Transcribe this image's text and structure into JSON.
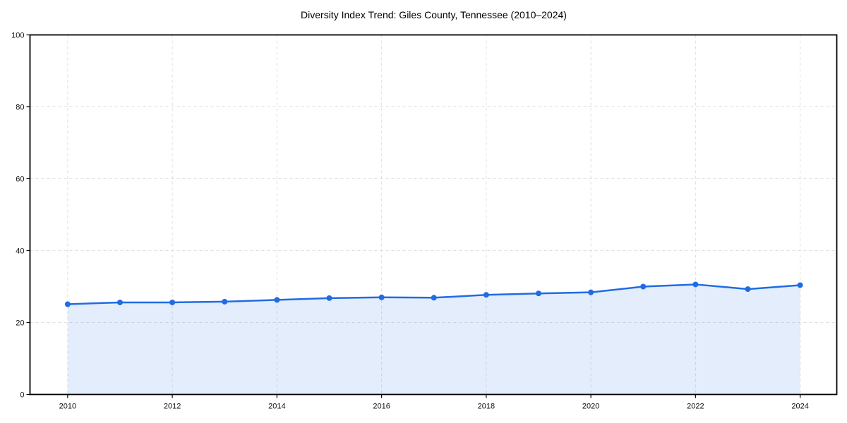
{
  "chart_data": {
    "type": "line",
    "area_fill": true,
    "title": "Diversity Index Trend: Giles County, Tennessee (2010–2024)",
    "x": [
      2010,
      2011,
      2012,
      2013,
      2014,
      2015,
      2016,
      2017,
      2018,
      2019,
      2020,
      2021,
      2022,
      2023,
      2024
    ],
    "values": [
      25.1,
      25.6,
      25.6,
      25.8,
      26.3,
      26.8,
      27.0,
      26.9,
      27.7,
      28.1,
      28.4,
      30.0,
      30.6,
      29.3,
      30.4
    ],
    "xlabel": "",
    "ylabel": "",
    "xlim": [
      2009.28,
      2024.7
    ],
    "ylim": [
      0,
      100
    ],
    "xticks": [
      2010,
      2012,
      2014,
      2016,
      2018,
      2020,
      2022,
      2024
    ],
    "yticks": [
      0,
      20,
      40,
      60,
      80,
      100
    ],
    "grid": "dashed",
    "legend": "none",
    "marker": "circle",
    "colors": {
      "line": "#1f6ce4",
      "marker": "#1f6ce4",
      "fill": "#1f6ce4",
      "fill_opacity": 0.12,
      "grid": "#dedede",
      "spine": "#000000",
      "text": "#111111",
      "background": "#ffffff"
    }
  }
}
